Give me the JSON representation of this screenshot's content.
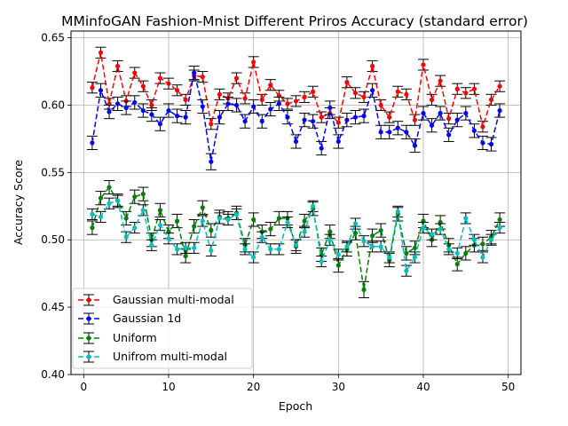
{
  "chart_data": {
    "type": "line",
    "title": "MMinfoGAN Fashion-Mnist Different Priros Accuracy (standard error)",
    "xlabel": "Epoch",
    "ylabel": "Accuracy Score",
    "xlim": [
      -1.5,
      51.5
    ],
    "ylim": [
      0.4,
      0.655
    ],
    "xticks": [
      0,
      10,
      20,
      30,
      40,
      50
    ],
    "yticks": [
      0.4,
      0.45,
      0.5,
      0.55,
      0.6,
      0.65
    ],
    "xtick_labels": [
      "0",
      "10",
      "20",
      "30",
      "40",
      "50"
    ],
    "ytick_labels": [
      "0.40",
      "0.45",
      "0.50",
      "0.55",
      "0.60",
      "0.65"
    ],
    "grid": true,
    "legend_position": "lower-left",
    "x": [
      1,
      2,
      3,
      4,
      5,
      6,
      7,
      8,
      9,
      10,
      11,
      12,
      13,
      14,
      15,
      16,
      17,
      18,
      19,
      20,
      21,
      22,
      23,
      24,
      25,
      26,
      27,
      28,
      29,
      30,
      31,
      32,
      33,
      34,
      35,
      36,
      37,
      38,
      39,
      40,
      41,
      42,
      43,
      44,
      45,
      46,
      47,
      48,
      49
    ],
    "series": [
      {
        "name": "Gaussian multi-modal",
        "color": "#ff0000",
        "values": [
          0.613,
          0.639,
          0.601,
          0.629,
          0.603,
          0.624,
          0.614,
          0.6,
          0.62,
          0.616,
          0.611,
          0.604,
          0.622,
          0.621,
          0.586,
          0.608,
          0.605,
          0.62,
          0.605,
          0.632,
          0.604,
          0.615,
          0.607,
          0.601,
          0.603,
          0.606,
          0.61,
          0.591,
          0.594,
          0.587,
          0.617,
          0.609,
          0.606,
          0.629,
          0.6,
          0.591,
          0.61,
          0.608,
          0.589,
          0.63,
          0.604,
          0.618,
          0.59,
          0.612,
          0.609,
          0.612,
          0.584,
          0.604,
          0.614
        ],
        "errors": [
          0.004,
          0.004,
          0.004,
          0.004,
          0.004,
          0.004,
          0.004,
          0.004,
          0.004,
          0.004,
          0.004,
          0.004,
          0.004,
          0.004,
          0.004,
          0.004,
          0.004,
          0.004,
          0.004,
          0.004,
          0.004,
          0.004,
          0.004,
          0.004,
          0.004,
          0.004,
          0.004,
          0.004,
          0.004,
          0.004,
          0.004,
          0.004,
          0.004,
          0.004,
          0.004,
          0.004,
          0.004,
          0.004,
          0.004,
          0.004,
          0.004,
          0.004,
          0.004,
          0.004,
          0.004,
          0.004,
          0.004,
          0.004,
          0.004
        ]
      },
      {
        "name": "Gaussian 1d",
        "color": "#0000ff",
        "values": [
          0.572,
          0.611,
          0.595,
          0.601,
          0.598,
          0.602,
          0.596,
          0.593,
          0.586,
          0.596,
          0.592,
          0.591,
          0.624,
          0.599,
          0.558,
          0.591,
          0.601,
          0.6,
          0.588,
          0.599,
          0.588,
          0.597,
          0.601,
          0.591,
          0.573,
          0.589,
          0.588,
          0.568,
          0.598,
          0.573,
          0.589,
          0.591,
          0.592,
          0.611,
          0.58,
          0.58,
          0.583,
          0.58,
          0.57,
          0.594,
          0.585,
          0.594,
          0.578,
          0.589,
          0.594,
          0.581,
          0.572,
          0.571,
          0.596
        ],
        "errors": [
          0.005,
          0.005,
          0.005,
          0.005,
          0.005,
          0.005,
          0.005,
          0.005,
          0.005,
          0.005,
          0.005,
          0.005,
          0.005,
          0.005,
          0.006,
          0.005,
          0.005,
          0.005,
          0.005,
          0.005,
          0.005,
          0.005,
          0.005,
          0.005,
          0.005,
          0.005,
          0.005,
          0.005,
          0.005,
          0.005,
          0.005,
          0.005,
          0.005,
          0.005,
          0.005,
          0.005,
          0.005,
          0.005,
          0.005,
          0.005,
          0.005,
          0.005,
          0.005,
          0.005,
          0.005,
          0.005,
          0.005,
          0.005,
          0.005
        ]
      },
      {
        "name": "Uniform",
        "color": "#008000",
        "values": [
          0.509,
          0.531,
          0.539,
          0.529,
          0.516,
          0.532,
          0.534,
          0.5,
          0.522,
          0.506,
          0.514,
          0.488,
          0.51,
          0.524,
          0.507,
          0.517,
          0.516,
          0.52,
          0.496,
          0.515,
          0.506,
          0.508,
          0.516,
          0.516,
          0.495,
          0.514,
          0.523,
          0.489,
          0.506,
          0.481,
          0.493,
          0.505,
          0.463,
          0.503,
          0.507,
          0.485,
          0.519,
          0.49,
          0.494,
          0.514,
          0.5,
          0.513,
          0.496,
          0.482,
          0.49,
          0.496,
          0.497,
          0.502,
          0.515
        ],
        "errors": [
          0.005,
          0.005,
          0.005,
          0.005,
          0.005,
          0.005,
          0.005,
          0.005,
          0.005,
          0.005,
          0.005,
          0.005,
          0.005,
          0.005,
          0.005,
          0.005,
          0.005,
          0.005,
          0.005,
          0.005,
          0.005,
          0.005,
          0.005,
          0.005,
          0.005,
          0.005,
          0.005,
          0.005,
          0.005,
          0.005,
          0.005,
          0.005,
          0.006,
          0.005,
          0.005,
          0.005,
          0.005,
          0.005,
          0.005,
          0.005,
          0.005,
          0.005,
          0.005,
          0.005,
          0.005,
          0.005,
          0.005,
          0.005,
          0.005
        ]
      },
      {
        "name": "Unifrom multi-modal",
        "color": "#00bfbf",
        "values": [
          0.519,
          0.517,
          0.527,
          0.529,
          0.502,
          0.509,
          0.522,
          0.496,
          0.511,
          0.501,
          0.493,
          0.494,
          0.494,
          0.514,
          0.492,
          0.516,
          0.515,
          0.519,
          0.493,
          0.487,
          0.502,
          0.493,
          0.493,
          0.513,
          0.496,
          0.506,
          0.525,
          0.484,
          0.5,
          0.489,
          0.495,
          0.512,
          0.499,
          0.495,
          0.495,
          0.487,
          0.521,
          0.477,
          0.487,
          0.509,
          0.504,
          0.508,
          0.493,
          0.49,
          0.516,
          0.5,
          0.487,
          0.5,
          0.509
        ],
        "errors": [
          0.004,
          0.004,
          0.004,
          0.004,
          0.004,
          0.004,
          0.004,
          0.004,
          0.004,
          0.004,
          0.004,
          0.004,
          0.004,
          0.004,
          0.004,
          0.004,
          0.004,
          0.004,
          0.004,
          0.004,
          0.004,
          0.004,
          0.004,
          0.004,
          0.004,
          0.004,
          0.004,
          0.004,
          0.004,
          0.004,
          0.004,
          0.004,
          0.004,
          0.004,
          0.004,
          0.004,
          0.004,
          0.004,
          0.004,
          0.004,
          0.004,
          0.004,
          0.004,
          0.004,
          0.004,
          0.004,
          0.004,
          0.004,
          0.004
        ]
      }
    ]
  }
}
